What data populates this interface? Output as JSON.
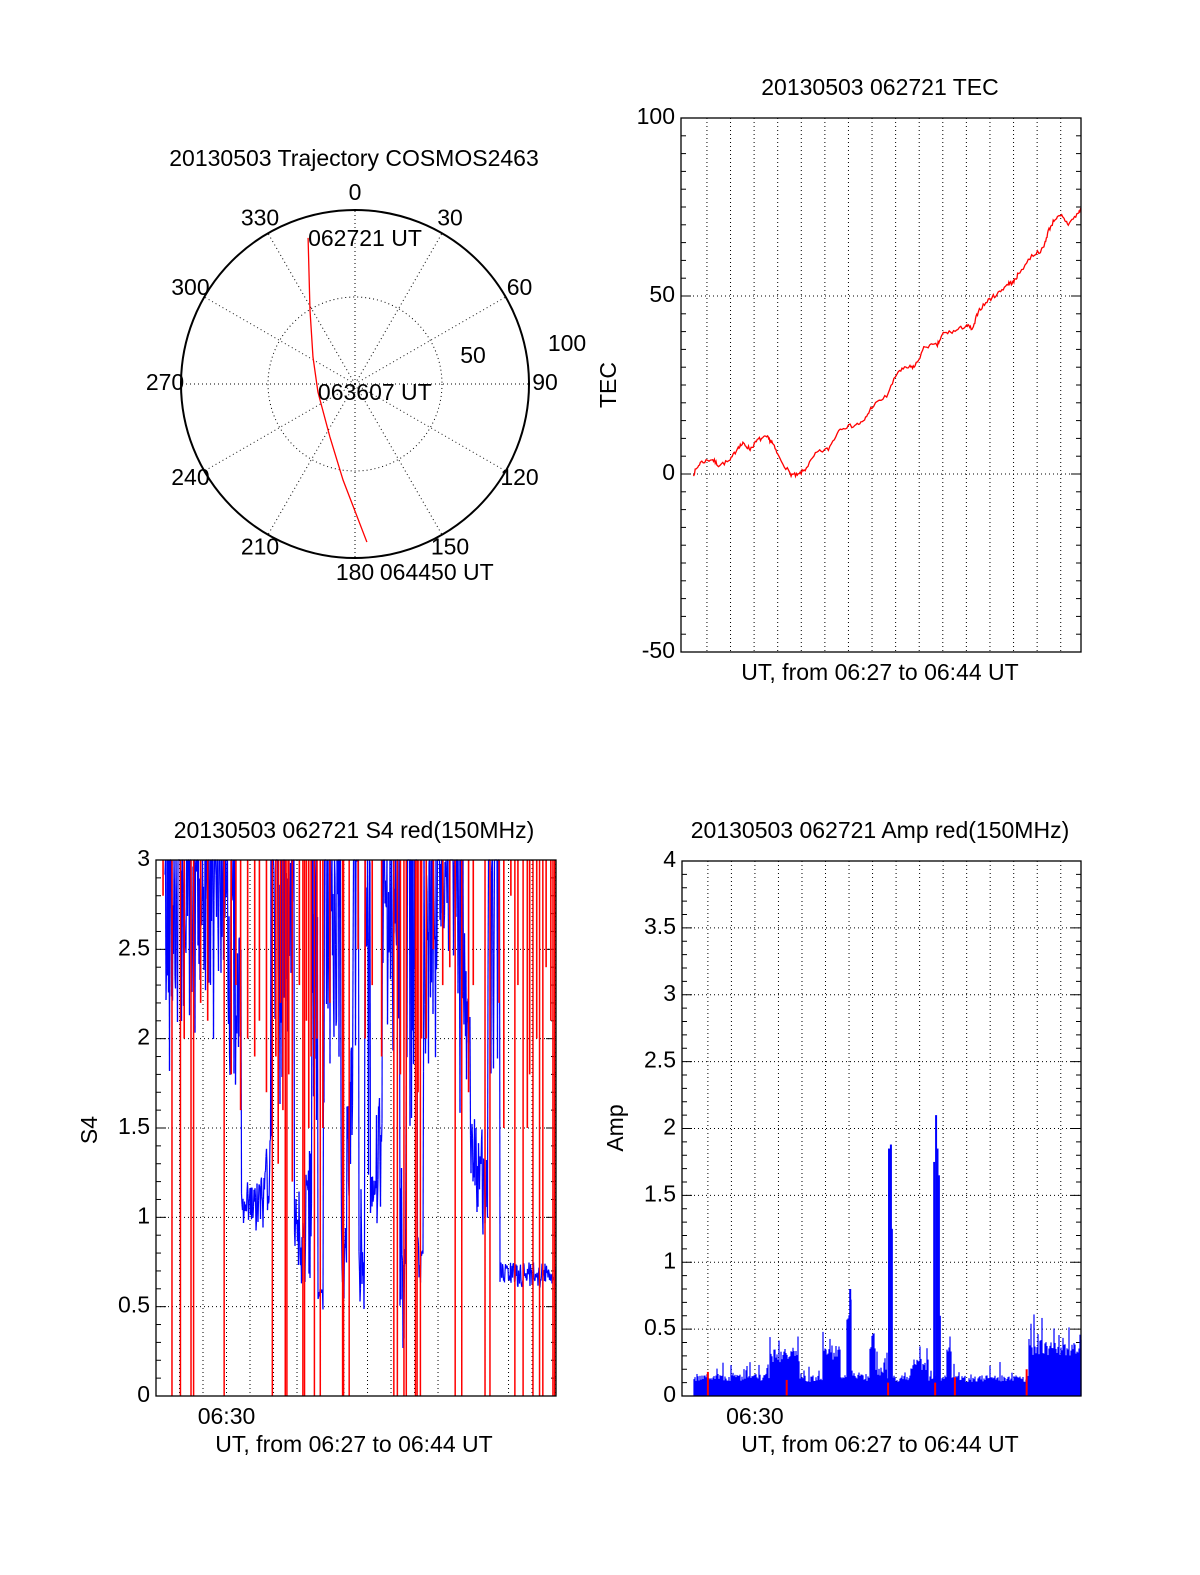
{
  "chart_data": [
    {
      "type": "polar",
      "title": "20130503 Trajectory COSMOS2463",
      "azimuth_labels": [
        "0",
        "30",
        "60",
        "90",
        "120",
        "150",
        "180",
        "210",
        "240",
        "270",
        "300",
        "330"
      ],
      "radial_labels": [
        "50",
        "100"
      ],
      "rlim": [
        0,
        100
      ],
      "grid": true,
      "trajectory": {
        "color": "#ff0000",
        "az": [
          342.2,
          328.7,
          302.7,
          257.8,
          245.4,
          205.3,
          187.1,
          175.7
        ],
        "r": [
          88.2,
          49.8,
          28.7,
          21.8,
          22.1,
          33.7,
          55.6,
          91.1
        ]
      },
      "annotations": [
        {
          "text": "062721 UT",
          "point": 0
        },
        {
          "text": "063607 UT",
          "point": 3
        },
        {
          "text": "064450 UT",
          "point": 7
        }
      ]
    },
    {
      "type": "line",
      "title": "20130503 062721 TEC",
      "xlabel": "UT, from 06:27 to 06:44 UT",
      "ylabel": "TEC",
      "ylim": [
        -50,
        100
      ],
      "xlim_minutes_after_0627": [
        -0.1,
        16.86
      ],
      "yticklabels": [
        "100",
        "50",
        "0",
        "-50"
      ],
      "ytick_values": [
        100,
        50,
        0,
        -50
      ],
      "grid": true,
      "series": [
        {
          "name": "TEC",
          "color": "#ff0000",
          "x": [
            0.43,
            0.72,
            1.21,
            1.49,
            1.98,
            2.33,
            2.55,
            2.83,
            3.18,
            3.54,
            3.75,
            4.03,
            4.53,
            4.83,
            5.16,
            5.66,
            6.15,
            6.65,
            7.21,
            7.64,
            7.99,
            8.62,
            9.11,
            9.54,
            9.82,
            10.25,
            10.77,
            11.02,
            11.52,
            12.01,
            12.27,
            12.5,
            12.93,
            13.35,
            13.77,
            13.99,
            14.2,
            14.77,
            15.26,
            15.47,
            15.75,
            16.04,
            16.32,
            16.74,
            16.86
          ],
          "y": [
            0,
            3.2,
            4.2,
            2.5,
            3.7,
            7.7,
            8.5,
            7,
            9.7,
            10.3,
            9,
            5,
            0,
            -0.5,
            1.3,
            6,
            7,
            13,
            13.6,
            14.6,
            18.9,
            21.9,
            28.9,
            29.9,
            30.2,
            35.9,
            36.2,
            39.5,
            40.1,
            41.8,
            40.5,
            45.8,
            48.8,
            50.8,
            53.5,
            53.8,
            56.1,
            61.3,
            63.2,
            68.2,
            71.7,
            72.4,
            70.2,
            73.2,
            74.5
          ]
        }
      ]
    },
    {
      "type": "line",
      "title": "20130503 062721 S4 red(150MHz)",
      "xlabel": "UT, from 06:27 to 06:44 UT",
      "ylabel": "S4",
      "xticklabel": "06:30",
      "ylim": [
        0,
        3
      ],
      "xlim_minutes_after_0627": [
        0.0,
        17.02
      ],
      "yticklabels": [
        "3",
        "2.5",
        "2",
        "1.5",
        "1",
        "0.5",
        "0"
      ],
      "ytick_values": [
        3,
        2.5,
        2,
        1.5,
        1,
        0.5,
        0
      ],
      "grid": true,
      "blue_envelope": {
        "color": "#0000ff",
        "t_start": 0.25,
        "t_step": 0.25,
        "low": [
          null,
          1.8,
          1.8,
          1.9,
          1.9,
          1.9,
          2.0,
          1.9,
          2.0,
          1.8,
          2.1,
          1.9,
          1.6,
          1.7,
          0.85,
          0.85,
          0.85,
          0.9,
          1.0,
          1.3,
          1.5,
          1.9,
          2.0,
          0.7,
          0.6,
          0.65,
          1.5,
          0.45,
          1.5,
          1.8,
          1.6,
          0.5,
          0.9,
          1.5,
          0.25,
          1.2,
          1.0,
          0.85,
          1.4,
          1.8,
          2.0,
          0.22,
          1.5,
          1.8,
          0.6,
          1.6,
          1.9,
          1.7,
          2.2,
          2.3,
          2.0,
          1.4,
          1.5,
          1.1,
          1.0,
          0.9,
          1.6,
          0.0,
          0.6,
          0.6,
          0.6,
          0.6,
          0.6,
          0.6,
          0.6,
          0.6,
          0.6,
          0.6
        ],
        "high": [
          null,
          3,
          3,
          3,
          3,
          3,
          3,
          3,
          3,
          3,
          3,
          3,
          3,
          2.6,
          1.15,
          1.2,
          1.2,
          1.25,
          1.5,
          3,
          3,
          3,
          3,
          1.2,
          1.0,
          1.6,
          3,
          0.6,
          3,
          3,
          3,
          1.0,
          2.0,
          3,
          1.2,
          3,
          1.3,
          1.7,
          3,
          3,
          3,
          1.3,
          3,
          3,
          0.9,
          3,
          3,
          3,
          3,
          3,
          3,
          3,
          2.6,
          1.6,
          1.5,
          1.4,
          3,
          3,
          0.75,
          0.75,
          0.75,
          0.75,
          0.75,
          0.75,
          0.75,
          0.75,
          0.75,
          0.75
        ]
      },
      "red_full_spikes_t": [
        0.68,
        1.04,
        1.49,
        1.6,
        2.9,
        4.95,
        5.5,
        5.57,
        6.25,
        6.32,
        6.74,
        6.99,
        7.94,
        7.98,
        8.22,
        10.12,
        10.27,
        10.55,
        10.65,
        11.04,
        11.11,
        11.25,
        12.73,
        13.01,
        14.0,
        14.21,
        15.27,
        15.62,
        16.04,
        16.32,
        16.46,
        16.89,
        16.96
      ],
      "red_partial_spikes": [
        [
          0.3,
          2.8
        ],
        [
          1.2,
          2.0
        ],
        [
          1.9,
          2.2
        ],
        [
          2.2,
          2.1
        ],
        [
          3.2,
          1.8
        ],
        [
          3.4,
          2.3
        ],
        [
          3.6,
          1.6
        ],
        [
          3.9,
          2.0
        ],
        [
          4.2,
          1.9
        ],
        [
          4.4,
          2.1
        ],
        [
          4.7,
          1.7
        ],
        [
          5.1,
          1.9
        ],
        [
          5.2,
          1.3
        ],
        [
          5.3,
          2.2
        ],
        [
          5.4,
          1.6
        ],
        [
          5.65,
          1.8
        ],
        [
          5.8,
          1.2
        ],
        [
          6.1,
          2.3
        ],
        [
          6.4,
          2.1
        ],
        [
          6.5,
          1.5
        ],
        [
          6.6,
          1.9
        ],
        [
          6.85,
          2.0
        ],
        [
          7.1,
          1.5
        ],
        [
          7.4,
          2.2
        ],
        [
          8.6,
          2.5
        ],
        [
          8.9,
          2.0
        ],
        [
          9.2,
          2.3
        ],
        [
          9.6,
          1.9
        ],
        [
          10.4,
          1.8
        ],
        [
          11.15,
          1.7
        ],
        [
          11.3,
          2.0
        ],
        [
          11.5,
          2.0
        ],
        [
          11.8,
          2.5
        ],
        [
          12.2,
          2.3
        ],
        [
          12.5,
          2.4
        ],
        [
          13.3,
          1.7
        ],
        [
          13.5,
          2.3
        ],
        [
          14.6,
          2.2
        ],
        [
          14.8,
          1.5
        ],
        [
          15.1,
          2.8
        ],
        [
          15.4,
          2.3
        ],
        [
          15.8,
          1.5
        ],
        [
          15.9,
          1.8
        ],
        [
          16.2,
          2.0
        ],
        [
          16.6,
          2.4
        ],
        [
          16.8,
          2.1
        ]
      ]
    },
    {
      "type": "bar",
      "title": "20130503 062721 Amp red(150MHz)",
      "xlabel": "UT, from 06:27 to 06:44 UT",
      "ylabel": "Amp",
      "xticklabel": "06:30",
      "ylim": [
        0,
        4
      ],
      "xlim_minutes_after_0627": [
        -0.1,
        16.86
      ],
      "yticklabels": [
        "4",
        "3.5",
        "3",
        "2.5",
        "2",
        "1.5",
        "1",
        "0.5",
        "0"
      ],
      "ytick_values": [
        4,
        3.5,
        3,
        2.5,
        2,
        1.5,
        1,
        0.5,
        0
      ],
      "grid": true,
      "blue_envelope": {
        "color": "#0000ff",
        "t_start": 0.25,
        "t_step": 0.25,
        "base": [
          null,
          0.15,
          0.15,
          0.15,
          0.15,
          0.15,
          0.15,
          0.15,
          0.15,
          0.15,
          0.15,
          0.15,
          0.15,
          0.15,
          0.33,
          0.33,
          0.33,
          0.33,
          0.33,
          0.14,
          0.14,
          0.14,
          0.14,
          0.35,
          0.35,
          0.35,
          0.15,
          0.65,
          0.15,
          0.15,
          0.15,
          0.45,
          0.2,
          0.2,
          0.15,
          0.14,
          0.14,
          0.14,
          0.25,
          0.25,
          0.25,
          0.15,
          0.15,
          0.15,
          0.35,
          0.14,
          0.14,
          0.14,
          0.14,
          0.14,
          0.14,
          0.14,
          0.14,
          0.14,
          0.14,
          0.14,
          0.14,
          0.14,
          0.4,
          0.4,
          0.4,
          0.4,
          0.4,
          0.4,
          0.4,
          0.4,
          0.4,
          0.4
        ],
        "max": [
          null,
          0.28,
          0.28,
          0.28,
          0.28,
          0.28,
          0.28,
          0.28,
          0.28,
          0.28,
          0.28,
          0.28,
          0.28,
          0.28,
          0.5,
          0.5,
          0.5,
          0.5,
          0.5,
          0.25,
          0.25,
          0.25,
          0.25,
          0.6,
          0.6,
          0.6,
          0.25,
          0.8,
          0.22,
          0.22,
          0.22,
          0.55,
          0.35,
          0.35,
          0.25,
          0.22,
          0.22,
          0.22,
          0.4,
          0.4,
          0.4,
          0.25,
          0.2,
          0.25,
          0.55,
          0.28,
          0.28,
          0.28,
          0.28,
          0.28,
          0.28,
          0.28,
          0.28,
          0.28,
          0.28,
          0.28,
          0.28,
          0.28,
          0.6,
          0.6,
          0.6,
          0.6,
          0.6,
          0.6,
          0.6,
          0.6,
          0.6,
          0.6
        ]
      },
      "blue_peaks": [
        [
          7.05,
          0.8
        ],
        [
          8.7,
          1.85
        ],
        [
          8.78,
          1.88
        ],
        [
          8.82,
          1.25
        ],
        [
          10.62,
          1.75
        ],
        [
          10.7,
          2.1
        ],
        [
          10.76,
          1.85
        ],
        [
          10.82,
          1.65
        ],
        [
          10.86,
          0.6
        ]
      ],
      "red_marks": [
        [
          8.66,
          0.1
        ],
        [
          10.66,
          0.1
        ],
        [
          1.0,
          0.18
        ],
        [
          4.35,
          0.12
        ],
        [
          11.5,
          0.14
        ],
        [
          14.55,
          0.2
        ]
      ]
    }
  ]
}
